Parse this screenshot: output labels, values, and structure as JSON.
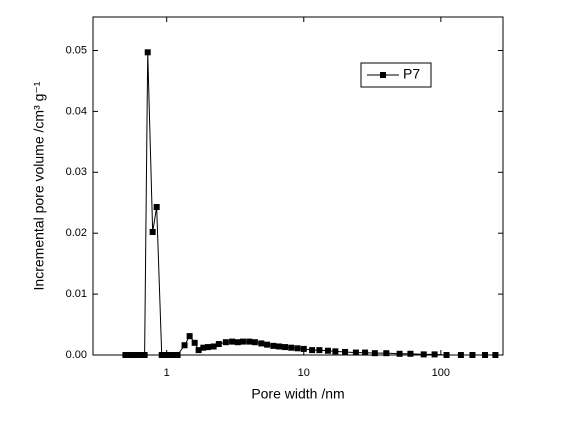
{
  "chart_data": {
    "type": "line",
    "x_label": "Pore width /nm",
    "y_label": "Incremental pore volume /cm³ g⁻¹",
    "x_scale": "log",
    "xlim": [
      0.29,
      284
    ],
    "ylim": [
      0,
      0.0555
    ],
    "xticks": [
      1,
      10,
      100
    ],
    "yticks": [
      {
        "value": 0,
        "label": "0.00"
      },
      {
        "value": 0.01,
        "label": "0.01"
      },
      {
        "value": 0.02,
        "label": "0.02"
      },
      {
        "value": 0.03,
        "label": "0.03"
      },
      {
        "value": 0.04,
        "label": "0.04"
      },
      {
        "value": 0.05,
        "label": "0.05"
      }
    ],
    "legend": "upper right",
    "series": [
      {
        "name": "P7",
        "color": "#000000",
        "x": [
          0.5,
          0.55,
          0.6,
          0.65,
          0.69,
          0.727,
          0.79,
          0.845,
          0.92,
          1.0,
          1.1,
          1.2,
          1.35,
          1.47,
          1.6,
          1.71,
          1.85,
          2.0,
          2.2,
          2.4,
          2.7,
          3.0,
          3.3,
          3.6,
          4.0,
          4.4,
          4.9,
          5.4,
          6.0,
          6.6,
          7.3,
          8.1,
          9.0,
          10,
          11.5,
          13,
          15,
          17,
          20,
          24,
          28,
          33,
          40,
          50,
          60,
          75,
          90,
          110,
          140,
          170,
          210,
          250
        ],
        "values": [
          0,
          0,
          0,
          0,
          0,
          0.0497,
          0.0202,
          0.0243,
          0,
          0,
          0,
          0,
          0.0016,
          0.0031,
          0.002,
          0.0008,
          0.0012,
          0.0013,
          0.0014,
          0.0018,
          0.0021,
          0.0022,
          0.0021,
          0.0022,
          0.0022,
          0.0021,
          0.0019,
          0.0017,
          0.0015,
          0.0014,
          0.0013,
          0.0012,
          0.0011,
          0.001,
          0.0008,
          0.0008,
          0.0007,
          0.0006,
          0.0005,
          0.0004,
          0.0004,
          0.0003,
          0.0003,
          0.0002,
          0.0002,
          0.0001,
          0.0001,
          0,
          0,
          0,
          0,
          0
        ]
      }
    ]
  }
}
